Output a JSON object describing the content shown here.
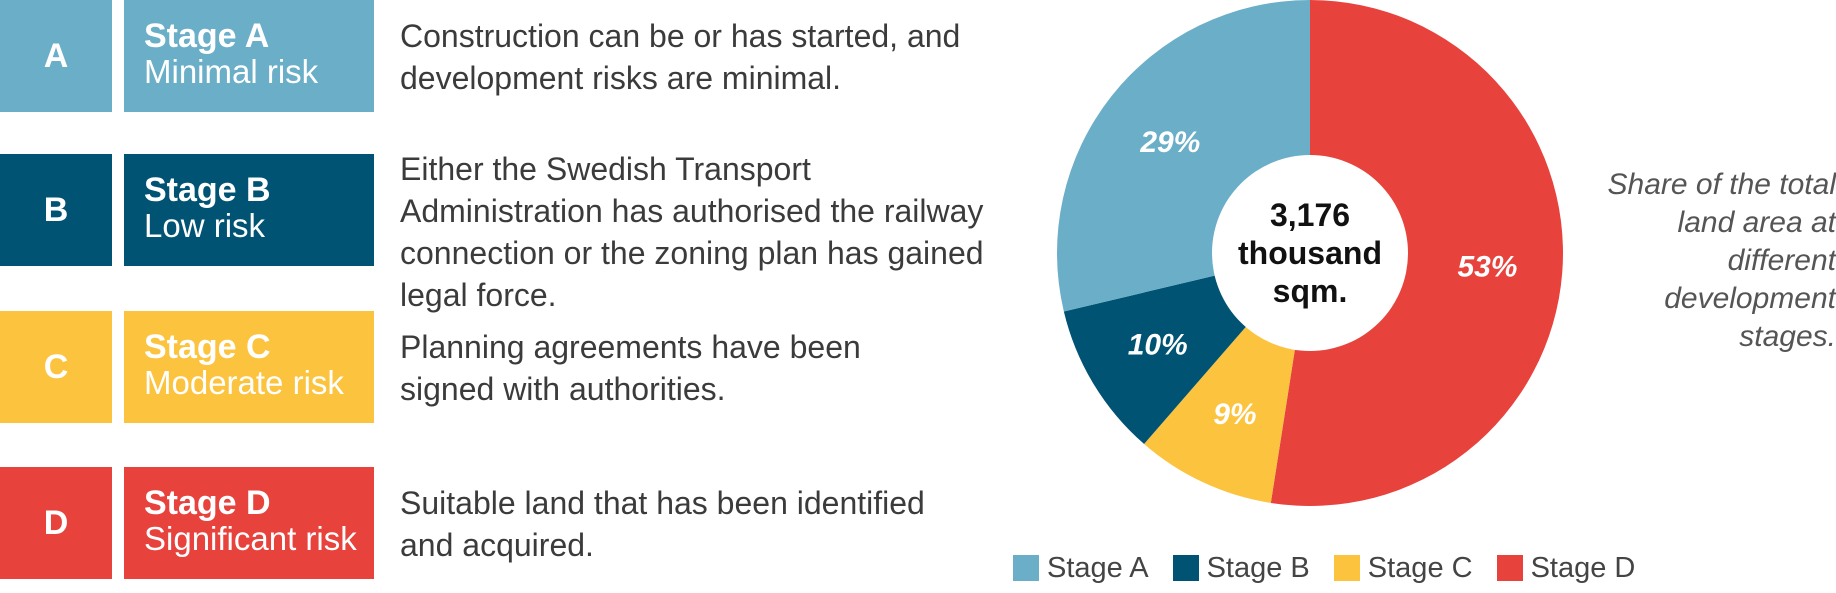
{
  "stages": [
    {
      "letter": "A",
      "name": "Stage A",
      "risk": "Minimal risk",
      "description": "Construction can be or has started, and development risks are minimal.",
      "color": "#6aaec8"
    },
    {
      "letter": "B",
      "name": "Stage B",
      "risk": "Low risk",
      "description": "Either the Swedish Transport Administration has authorised the railway connection or the zoning plan has gained legal force.",
      "color": "#005373"
    },
    {
      "letter": "C",
      "name": "Stage C",
      "risk": "Moderate risk",
      "description": "Planning agreements have been signed with authorities.",
      "color": "#fcc33f"
    },
    {
      "letter": "D",
      "name": "Stage D",
      "risk": "Significant risk",
      "description": "Suitable land that has been identified and acquired.",
      "color": "#e8423c"
    }
  ],
  "side_note": "Share of the total land area at different development stages.",
  "chart_data": {
    "type": "pie",
    "style": "donut",
    "center_label": [
      "3,176",
      "thousand",
      "sqm."
    ],
    "slices": [
      {
        "label": "Stage A",
        "value": 29,
        "display": "29%",
        "color": "#6aaec8"
      },
      {
        "label": "Stage B",
        "value": 10,
        "display": "10%",
        "color": "#005373"
      },
      {
        "label": "Stage C",
        "value": 9,
        "display": "9%",
        "color": "#fcc33f"
      },
      {
        "label": "Stage D",
        "value": 53,
        "display": "53%",
        "color": "#e8423c"
      }
    ],
    "legend": [
      "Stage A",
      "Stage B",
      "Stage C",
      "Stage D"
    ],
    "legend_position": "bottom"
  }
}
